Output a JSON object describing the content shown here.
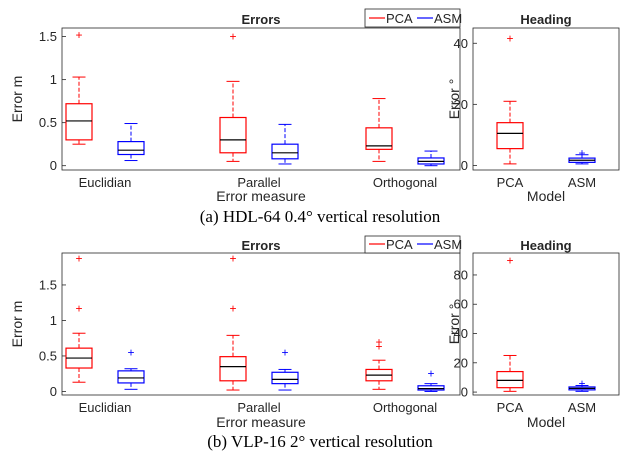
{
  "colors": {
    "pca": "#ff0000",
    "asm": "#0000ff",
    "median": "#000000",
    "outlier_pca": "#ff0000",
    "outlier_asm": "#0000ff"
  },
  "chart_data": [
    {
      "type": "box",
      "panel": "top-errors",
      "title": "Errors",
      "xlabel": "Error measure",
      "ylabel": "Error m",
      "ylim": [
        -0.05,
        1.6
      ],
      "yticks": [
        "0",
        "0.5",
        "1",
        "1.5"
      ],
      "ytick_values": [
        0,
        0.5,
        1,
        1.5
      ],
      "categories": [
        "Euclidian",
        "Parallel",
        "Orthogonal"
      ],
      "legend": [
        "PCA",
        "ASM"
      ],
      "legend_position": "top-right",
      "series": [
        {
          "name": "PCA",
          "boxes": [
            {
              "lo": 0.25,
              "q1": 0.3,
              "med": 0.52,
              "q3": 0.72,
              "hi": 1.03,
              "outliers": [
                1.52
              ]
            },
            {
              "lo": 0.05,
              "q1": 0.15,
              "med": 0.3,
              "q3": 0.56,
              "hi": 0.98,
              "outliers": [
                1.5
              ]
            },
            {
              "lo": 0.05,
              "q1": 0.19,
              "med": 0.23,
              "q3": 0.44,
              "hi": 0.78,
              "outliers": []
            }
          ]
        },
        {
          "name": "ASM",
          "boxes": [
            {
              "lo": 0.06,
              "q1": 0.13,
              "med": 0.18,
              "q3": 0.28,
              "hi": 0.49,
              "outliers": []
            },
            {
              "lo": 0.02,
              "q1": 0.08,
              "med": 0.15,
              "q3": 0.25,
              "hi": 0.48,
              "outliers": []
            },
            {
              "lo": 0.0,
              "q1": 0.02,
              "med": 0.05,
              "q3": 0.09,
              "hi": 0.17,
              "outliers": []
            }
          ]
        }
      ]
    },
    {
      "type": "box",
      "panel": "top-heading",
      "title": "Heading",
      "xlabel": "Model",
      "ylabel": "Error °",
      "ylim": [
        -1.5,
        45
      ],
      "yticks": [
        "0",
        "20",
        "40"
      ],
      "ytick_values": [
        0,
        20,
        40
      ],
      "categories": [
        "PCA",
        "ASM"
      ],
      "boxes": [
        {
          "series": "PCA",
          "lo": 0.5,
          "q1": 5.5,
          "med": 10.5,
          "q3": 14.0,
          "hi": 21.0,
          "outliers": [
            41.5
          ]
        },
        {
          "series": "ASM",
          "lo": 0.5,
          "q1": 1.0,
          "med": 1.7,
          "q3": 2.4,
          "hi": 3.5,
          "outliers": [
            4.0
          ]
        }
      ]
    },
    {
      "type": "box",
      "panel": "bottom-errors",
      "title": "Errors",
      "xlabel": "Error measure",
      "ylabel": "Error m",
      "ylim": [
        -0.05,
        1.95
      ],
      "yticks": [
        "0",
        "0.5",
        "1",
        "1.5"
      ],
      "ytick_values": [
        0,
        0.5,
        1,
        1.5
      ],
      "categories": [
        "Euclidian",
        "Parallel",
        "Orthogonal"
      ],
      "legend": [
        "PCA",
        "ASM"
      ],
      "legend_position": "top-right",
      "series": [
        {
          "name": "PCA",
          "boxes": [
            {
              "lo": 0.13,
              "q1": 0.33,
              "med": 0.47,
              "q3": 0.61,
              "hi": 0.82,
              "outliers": [
                1.17,
                1.87
              ]
            },
            {
              "lo": 0.02,
              "q1": 0.15,
              "med": 0.35,
              "q3": 0.49,
              "hi": 0.79,
              "outliers": [
                1.17,
                1.87
              ]
            },
            {
              "lo": 0.03,
              "q1": 0.15,
              "med": 0.23,
              "q3": 0.31,
              "hi": 0.44,
              "outliers": [
                0.63,
                0.7
              ]
            }
          ]
        },
        {
          "name": "ASM",
          "boxes": [
            {
              "lo": 0.03,
              "q1": 0.12,
              "med": 0.19,
              "q3": 0.29,
              "hi": 0.32,
              "outliers": [
                0.55
              ]
            },
            {
              "lo": 0.02,
              "q1": 0.11,
              "med": 0.17,
              "q3": 0.27,
              "hi": 0.31,
              "outliers": [
                0.55
              ]
            },
            {
              "lo": 0.0,
              "q1": 0.02,
              "med": 0.04,
              "q3": 0.08,
              "hi": 0.11,
              "outliers": [
                0.25
              ]
            }
          ]
        }
      ]
    },
    {
      "type": "box",
      "panel": "bottom-heading",
      "title": "Heading",
      "xlabel": "Model",
      "ylabel": "Error °",
      "ylim": [
        -2,
        95
      ],
      "yticks": [
        "0",
        "20",
        "40",
        "60",
        "80"
      ],
      "ytick_values": [
        0,
        20,
        40,
        60,
        80
      ],
      "categories": [
        "PCA",
        "ASM"
      ],
      "boxes": [
        {
          "series": "PCA",
          "lo": 0.5,
          "q1": 3.0,
          "med": 8.0,
          "q3": 14.0,
          "hi": 25.0,
          "outliers": [
            90.0
          ]
        },
        {
          "series": "ASM",
          "lo": 0.5,
          "q1": 1.5,
          "med": 2.5,
          "q3": 3.5,
          "hi": 4.5,
          "outliers": [
            6.0
          ]
        }
      ]
    }
  ],
  "captions": {
    "top": "(a) HDL-64 0.4° vertical resolution",
    "bottom": "(b) VLP-16 2° vertical resolution"
  }
}
